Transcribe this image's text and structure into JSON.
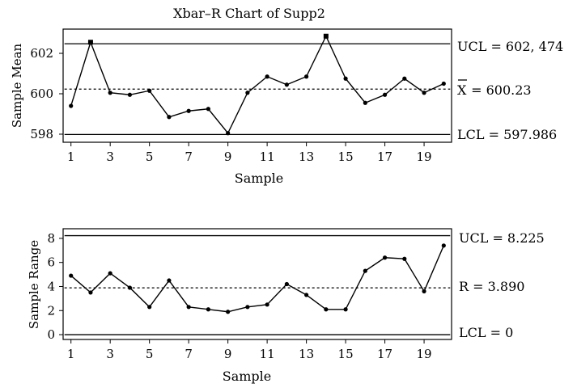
{
  "chart_data": [
    {
      "type": "line",
      "title": "Xbar–R Chart of Supp2",
      "xlabel": "Sample",
      "ylabel": "Sample Mean",
      "xlim": [
        0.6,
        20.4
      ],
      "ylim": [
        597.6,
        603.2
      ],
      "xticks": [
        1,
        3,
        5,
        7,
        9,
        11,
        13,
        15,
        17,
        19
      ],
      "yticks": [
        598,
        600,
        602
      ],
      "x": [
        1,
        2,
        3,
        4,
        5,
        6,
        7,
        8,
        9,
        10,
        11,
        12,
        13,
        14,
        15,
        16,
        17,
        18,
        19,
        20
      ],
      "series": [
        {
          "values": [
            599.4,
            602.55,
            600.05,
            599.95,
            600.15,
            598.85,
            599.15,
            599.25,
            598.05,
            600.05,
            600.85,
            600.45,
            600.85,
            602.85,
            600.75,
            599.55,
            599.95,
            600.75,
            600.05,
            600.5
          ]
        }
      ],
      "ucl": 602.474,
      "center": 600.23,
      "lcl": 597.986,
      "labels": {
        "ucl": "UCL = 602, 474",
        "center_symbol": "X",
        "center_value": " = 600.23",
        "lcl": "LCL = 597.986"
      },
      "grid": false
    },
    {
      "type": "line",
      "title": "",
      "xlabel": "Sample",
      "ylabel": "Sample Range",
      "xlim": [
        0.6,
        20.4
      ],
      "ylim": [
        -0.4,
        8.8
      ],
      "xticks": [
        1,
        3,
        5,
        7,
        9,
        11,
        13,
        15,
        17,
        19
      ],
      "yticks": [
        0,
        2,
        4,
        6,
        8
      ],
      "x": [
        1,
        2,
        3,
        4,
        5,
        6,
        7,
        8,
        9,
        10,
        11,
        12,
        13,
        14,
        15,
        16,
        17,
        18,
        19,
        20
      ],
      "series": [
        {
          "values": [
            4.9,
            3.5,
            5.1,
            3.9,
            2.3,
            4.5,
            2.3,
            2.1,
            1.9,
            2.3,
            2.5,
            4.2,
            3.3,
            2.1,
            2.1,
            5.3,
            6.4,
            6.3,
            3.6,
            7.4
          ]
        }
      ],
      "ucl": 8.225,
      "center": 3.89,
      "lcl": 0,
      "labels": {
        "ucl": "UCL = 8.225",
        "center_symbol": "",
        "center_value": "R = 3.890",
        "lcl": "LCL = 0"
      },
      "grid": false
    }
  ]
}
